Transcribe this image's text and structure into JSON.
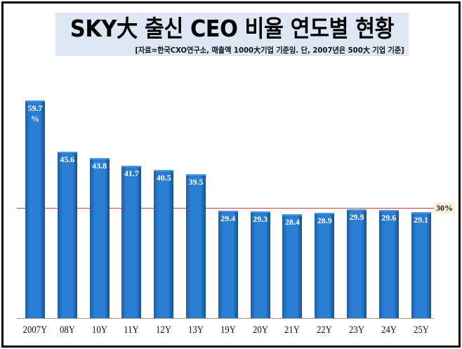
{
  "title": "SKY大 출신 CEO 비율 연도별 현황",
  "subtitle": "[자료=한국CXO연구소, 매출액 1000大기업  기준임. 단, 2007년은 500大 기업 기준]",
  "reference_line": {
    "value": 30,
    "label": "30%",
    "color": "#d43a3a"
  },
  "chart_data": {
    "type": "bar",
    "title": "SKY大 출신 CEO 비율 연도별 현황",
    "subtitle": "[자료=한국CXO연구소, 매출액 1000大기업  기준임. 단, 2007년은 500大 기업 기준]",
    "categories": [
      "2007Y",
      "08Y",
      "10Y",
      "11Y",
      "12Y",
      "13Y",
      "19Y",
      "20Y",
      "21Y",
      "22Y",
      "23Y",
      "24Y",
      "25Y"
    ],
    "values": [
      59.7,
      45.6,
      43.8,
      41.7,
      40.5,
      39.5,
      29.4,
      29.3,
      28.4,
      28.9,
      29.9,
      29.6,
      29.1
    ],
    "value_labels": [
      "59.7 %",
      "45.6",
      "43.8",
      "41.7",
      "40.5",
      "39.5",
      "29.4",
      "29.3",
      "28.4",
      "28.9",
      "29.9",
      "29.6",
      "29.1"
    ],
    "unit": "%",
    "xlabel": "",
    "ylabel": "",
    "annotations": [
      {
        "type": "hline",
        "y": 30,
        "label": "30%"
      }
    ],
    "bar_color": "#2a7fd4",
    "grid": false,
    "legend": null
  },
  "bars": [
    {
      "label": "59.7",
      "label2": "%",
      "x": "2007Y"
    },
    {
      "label": "45.6",
      "x": "08Y"
    },
    {
      "label": "43.8",
      "x": "10Y"
    },
    {
      "label": "41.7",
      "x": "11Y"
    },
    {
      "label": "40.5",
      "x": "12Y"
    },
    {
      "label": "39.5",
      "x": "13Y"
    },
    {
      "label": "29.4",
      "x": "19Y"
    },
    {
      "label": "29.3",
      "x": "20Y"
    },
    {
      "label": "28.4",
      "x": "21Y"
    },
    {
      "label": "28.9",
      "x": "22Y"
    },
    {
      "label": "29.9",
      "x": "23Y"
    },
    {
      "label": "29.6",
      "x": "24Y"
    },
    {
      "label": "29.1",
      "x": "25Y"
    }
  ]
}
